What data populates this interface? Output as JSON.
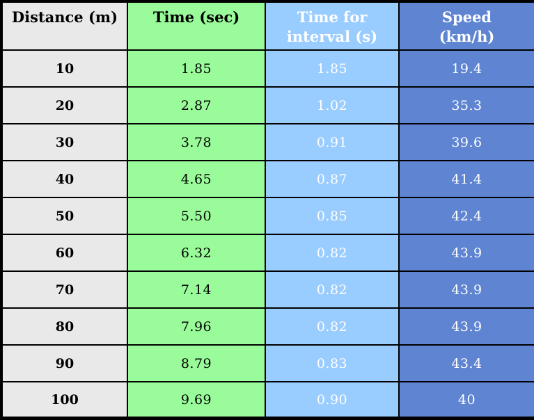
{
  "colors": {
    "border": "#000000",
    "distance_bg": "#e9e9e9",
    "time_bg": "#99fb99",
    "interval_bg": "#99ccff",
    "speed_bg": "#5e84d2",
    "dark_text": "#000000",
    "light_text": "#ffffff"
  },
  "table": {
    "headers": {
      "distance": {
        "line1": "Distance (m)",
        "line2": ""
      },
      "time": {
        "line1": "Time (sec)",
        "line2": ""
      },
      "interval": {
        "line1": "Time for",
        "line2": "interval (s)"
      },
      "speed": {
        "line1": "Speed",
        "line2": "(km/h)"
      }
    },
    "rows": [
      {
        "distance": "10",
        "time": "1.85",
        "interval": "1.85",
        "speed": "19.4"
      },
      {
        "distance": "20",
        "time": "2.87",
        "interval": "1.02",
        "speed": "35.3"
      },
      {
        "distance": "30",
        "time": "3.78",
        "interval": "0.91",
        "speed": "39.6"
      },
      {
        "distance": "40",
        "time": "4.65",
        "interval": "0.87",
        "speed": "41.4"
      },
      {
        "distance": "50",
        "time": "5.50",
        "interval": "0.85",
        "speed": "42.4"
      },
      {
        "distance": "60",
        "time": "6.32",
        "interval": "0.82",
        "speed": "43.9"
      },
      {
        "distance": "70",
        "time": "7.14",
        "interval": "0.82",
        "speed": "43.9"
      },
      {
        "distance": "80",
        "time": "7.96",
        "interval": "0.82",
        "speed": "43.9"
      },
      {
        "distance": "90",
        "time": "8.79",
        "interval": "0.83",
        "speed": "43.4"
      },
      {
        "distance": "100",
        "time": "9.69",
        "interval": "0.90",
        "speed": "40"
      }
    ]
  },
  "chart_data": {
    "type": "table",
    "columns": [
      "Distance (m)",
      "Time (sec)",
      "Time for interval (s)",
      "Speed (km/h)"
    ],
    "rows": [
      [
        10,
        1.85,
        1.85,
        19.4
      ],
      [
        20,
        2.87,
        1.02,
        35.3
      ],
      [
        30,
        3.78,
        0.91,
        39.6
      ],
      [
        40,
        4.65,
        0.87,
        41.4
      ],
      [
        50,
        5.5,
        0.85,
        42.4
      ],
      [
        60,
        6.32,
        0.82,
        43.9
      ],
      [
        70,
        7.14,
        0.82,
        43.9
      ],
      [
        80,
        7.96,
        0.82,
        43.9
      ],
      [
        90,
        8.79,
        0.83,
        43.4
      ],
      [
        100,
        9.69,
        0.9,
        40
      ]
    ]
  }
}
